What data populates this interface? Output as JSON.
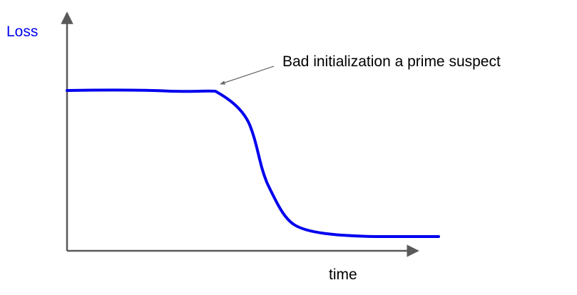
{
  "chart_data": {
    "type": "line",
    "ylabel": "Loss",
    "xlabel": "time",
    "annotations": [
      {
        "text": "Bad initialization a prime suspect"
      }
    ],
    "grid": false,
    "ticks": false,
    "colors": {
      "series": "#0000ee",
      "ylabel": "#0000ee",
      "axes": "#595959",
      "arrow": "#666666"
    }
  }
}
